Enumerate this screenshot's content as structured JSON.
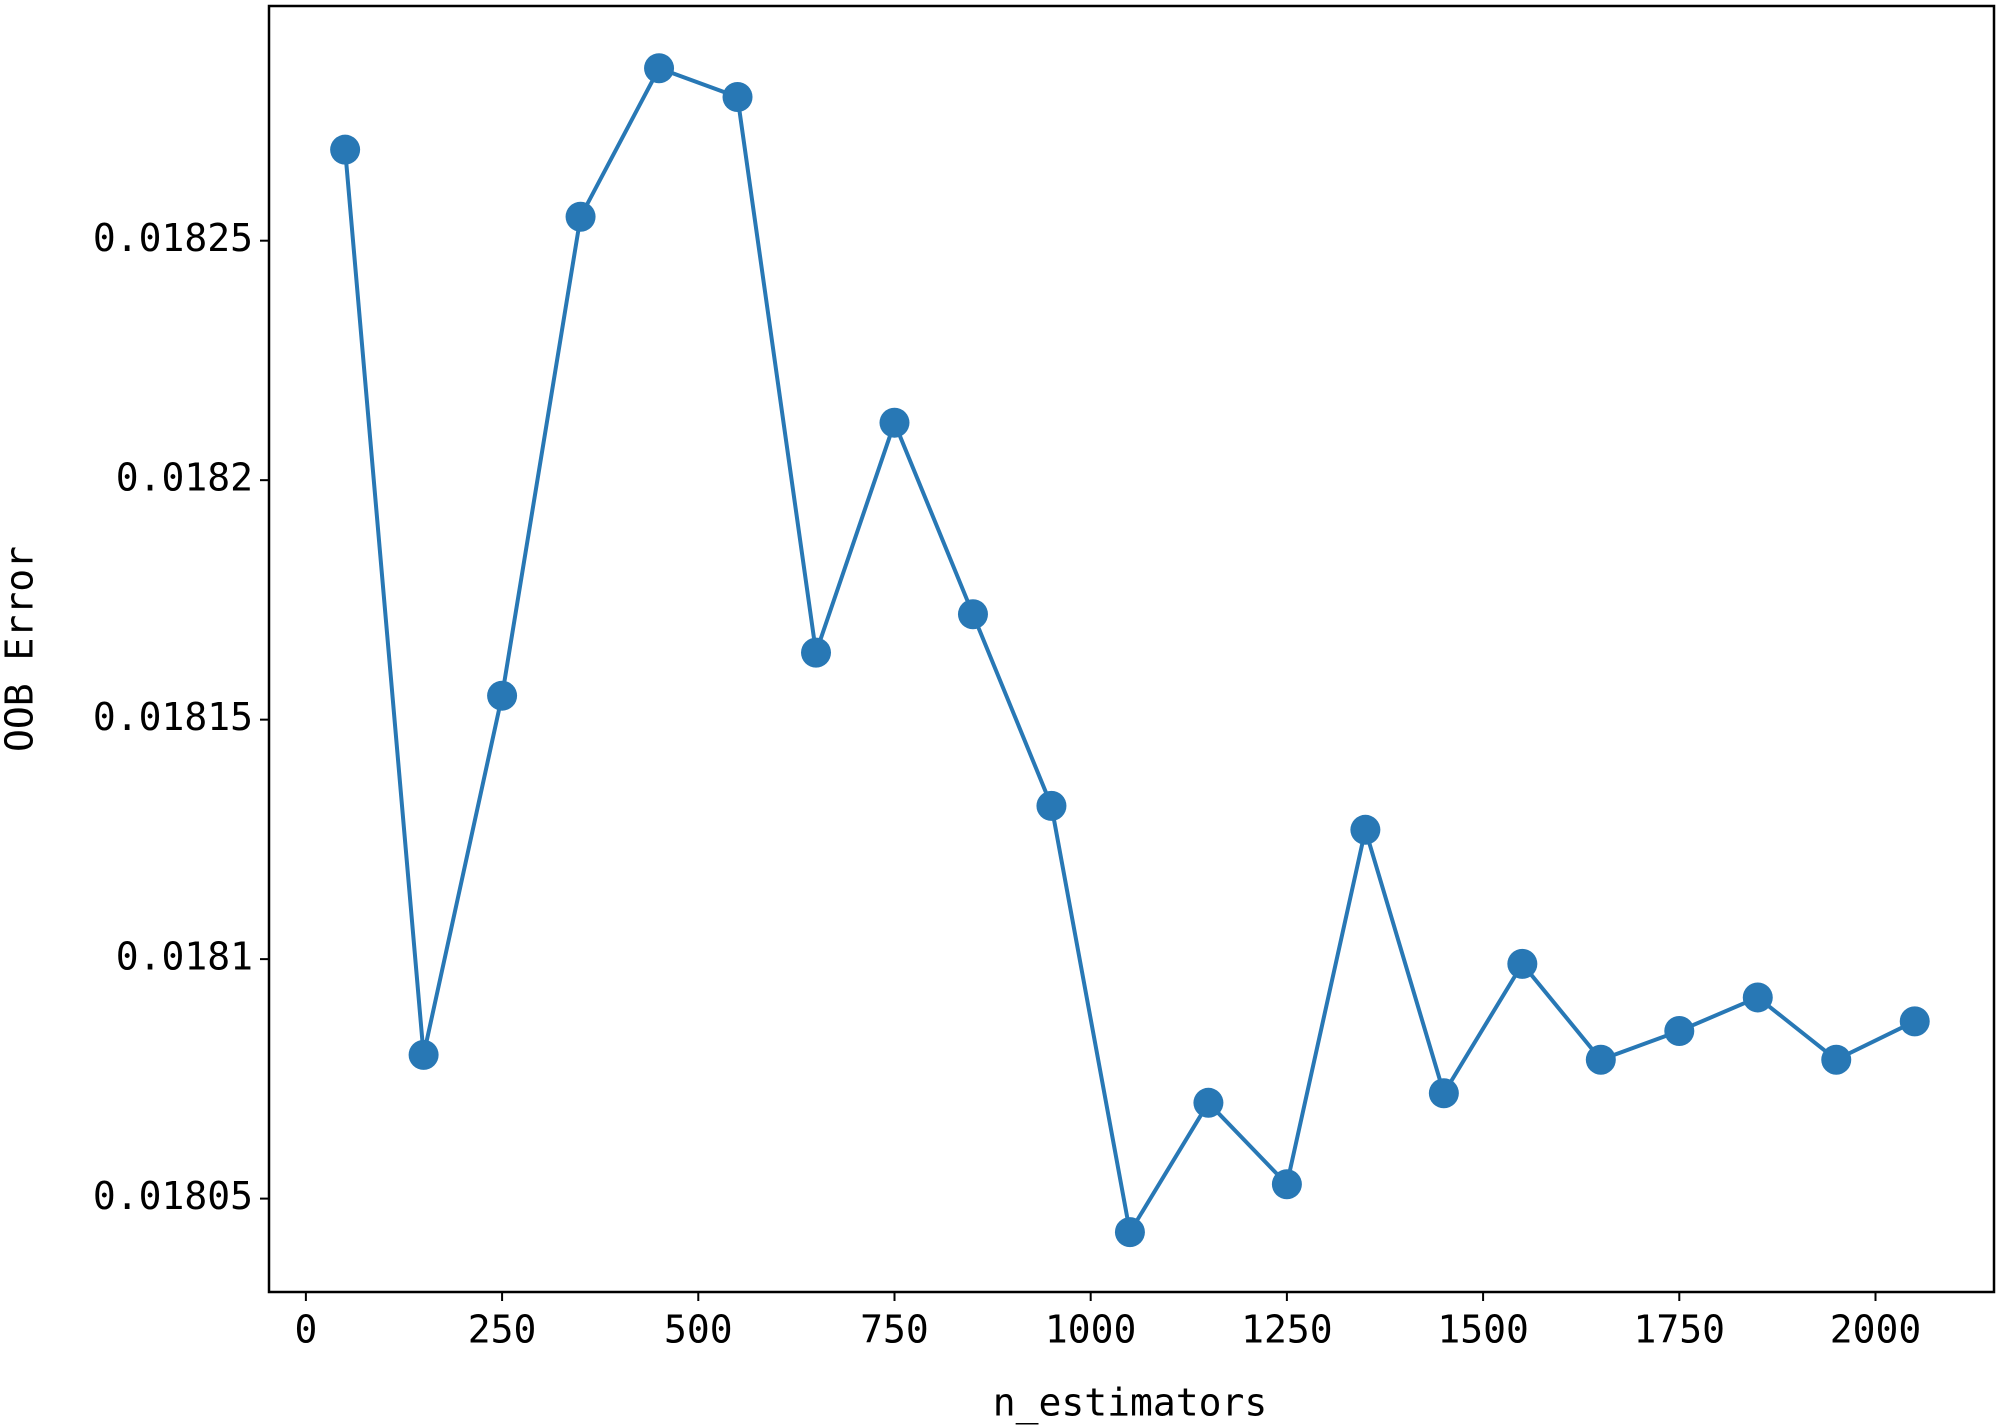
{
  "chart_data": {
    "type": "line",
    "x_label": "n_estimators",
    "y_label": "OOB Error",
    "x": [
      50,
      150,
      250,
      350,
      450,
      550,
      650,
      750,
      850,
      950,
      1050,
      1150,
      1250,
      1350,
      1450,
      1550,
      1650,
      1750,
      1850,
      1950,
      2050
    ],
    "series": [
      {
        "color": "#2878b5",
        "values": [
          0.018269,
          0.01808,
          0.018155,
          0.018255,
          0.018286,
          0.01828,
          0.018164,
          0.018212,
          0.018172,
          0.018132,
          0.018043,
          0.01807,
          0.018053,
          0.018127,
          0.018072,
          0.018099,
          0.018079,
          0.018085,
          0.018092,
          0.018079,
          0.018087
        ]
      }
    ],
    "xlim": [
      -47,
      2151
    ],
    "ylim": [
      0.0180305,
      0.018299
    ],
    "xticks": [
      0,
      250,
      500,
      750,
      1000,
      1250,
      1500,
      1750,
      2000
    ],
    "yticks": [
      0.01805,
      0.0181,
      0.01815,
      0.0182,
      0.01825
    ],
    "grid": false
  }
}
